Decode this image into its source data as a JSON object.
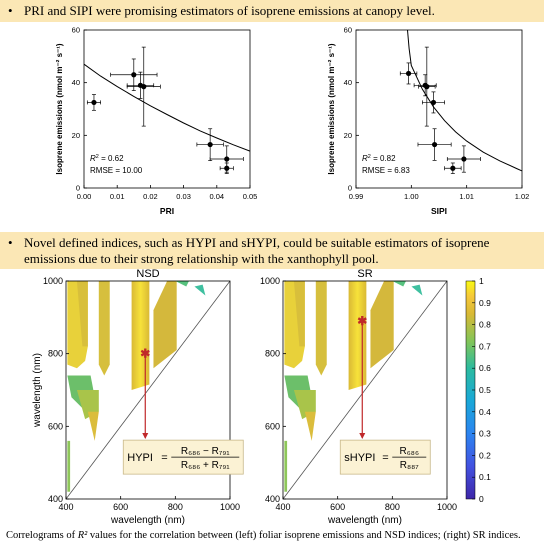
{
  "banner_top": {
    "bullet": "•",
    "text": "PRI and SIPI were promising estimators of isoprene emissions at canopy level."
  },
  "banner_mid": {
    "bullet": "•",
    "text": "Novel defined indices, such as HYPI and sHYPI, could be suitable estimators of isoprene emissions due to their strong relationship with the xanthophyll pool."
  },
  "caption": {
    "prefix": "Correlograms of ",
    "r2": "R²",
    "suffix": " values for the correlation between (left) foliar isoprene emissions and NSD indices; (right) SR indices."
  },
  "colors": {
    "banner": "#fbe7b5",
    "heat_high": "#f6e436",
    "heat_mid": "#cbb83c",
    "heat_low": "#3f2d8c",
    "formula_box": "#fbf2d4",
    "arrow": "#c0282a"
  },
  "chart_data": [
    {
      "type": "scatter",
      "xlabel": "PRI",
      "ylabel": "Isoprene emissions (nmol m⁻² s⁻¹)",
      "xlim": [
        0.0,
        0.05
      ],
      "ylim": [
        0,
        60
      ],
      "xticks": [
        "0.00",
        "0.01",
        "0.02",
        "0.03",
        "0.04",
        "0.05"
      ],
      "yticks": [
        "0",
        "20",
        "40",
        "60"
      ],
      "points": [
        {
          "x": 0.003,
          "y": 32.5,
          "xerr": 0.002,
          "yerr": 3
        },
        {
          "x": 0.015,
          "y": 43,
          "xerr": 0.007,
          "yerr": 6
        },
        {
          "x": 0.017,
          "y": 39,
          "xerr": 0.004,
          "yerr": 5
        },
        {
          "x": 0.018,
          "y": 38.5,
          "xerr": 0.005,
          "yerr": 15
        },
        {
          "x": 0.038,
          "y": 16.5,
          "xerr": 0.004,
          "yerr": 6
        },
        {
          "x": 0.043,
          "y": 11,
          "xerr": 0.005,
          "yerr": 5
        },
        {
          "x": 0.043,
          "y": 7.5,
          "xerr": 0.002,
          "yerr": 2
        }
      ],
      "fit": {
        "x": [
          0.0,
          0.005,
          0.01,
          0.015,
          0.02,
          0.025,
          0.03,
          0.035,
          0.04,
          0.045,
          0.05
        ],
        "y": [
          47,
          42.5,
          38.5,
          34.8,
          31.2,
          27.9,
          24.7,
          21.7,
          19,
          16.4,
          14
        ]
      },
      "annotation": {
        "r2_label": "R",
        "r2_sup": "2",
        "r2_value": " = 0.62",
        "rmse": "RMSE = 10.00"
      }
    },
    {
      "type": "scatter",
      "xlabel": "SIPI",
      "ylabel": "Isoprene emissions (nmol m⁻² s⁻¹)",
      "xlim": [
        0.99,
        1.02
      ],
      "ylim": [
        0,
        60
      ],
      "xticks": [
        "0.99",
        "1.00",
        "1.01",
        "1.02"
      ],
      "yticks": [
        "0",
        "20",
        "40",
        "60"
      ],
      "points": [
        {
          "x": 0.9995,
          "y": 43.5,
          "xerr": 0.0015,
          "yerr": 4
        },
        {
          "x": 1.0025,
          "y": 39,
          "xerr": 0.002,
          "yerr": 4
        },
        {
          "x": 1.0028,
          "y": 38.5,
          "xerr": 0.0015,
          "yerr": 15
        },
        {
          "x": 1.004,
          "y": 32.5,
          "xerr": 0.002,
          "yerr": 4
        },
        {
          "x": 1.0042,
          "y": 16.5,
          "xerr": 0.003,
          "yerr": 6
        },
        {
          "x": 1.0095,
          "y": 11,
          "xerr": 0.003,
          "yerr": 5
        },
        {
          "x": 1.0075,
          "y": 7.5,
          "xerr": 0.0015,
          "yerr": 2
        }
      ],
      "fit": {
        "x": [
          0.9993,
          0.9996,
          1.0,
          1.002,
          1.004,
          1.006,
          1.008,
          1.01,
          1.013,
          1.016,
          1.019,
          1.02
        ],
        "y": [
          60,
          53,
          46.5,
          37.5,
          30.8,
          25.6,
          21.3,
          17.8,
          13.6,
          10.3,
          7.4,
          6.5
        ]
      },
      "annotation": {
        "r2_label": "R",
        "r2_sup": "2",
        "r2_value": " = 0.82",
        "rmse": "RMSE = 6.83"
      }
    },
    {
      "type": "heatmap",
      "title": "NSD",
      "xlabel": "wavelength (nm)",
      "ylabel": "wavelength (nm)",
      "xlim": [
        400,
        1000
      ],
      "ylim": [
        400,
        1000
      ],
      "xticks": [
        "400",
        "600",
        "800",
        "1000"
      ],
      "yticks": [
        "400",
        "600",
        "800",
        "1000"
      ],
      "marker": {
        "x": 690,
        "y": 800
      },
      "formula": {
        "lhs": "HYPI",
        "num": "R₆₈₆ − R₇₉₁",
        "den": "R₆₈₆ + R₇₉₁"
      }
    },
    {
      "type": "heatmap",
      "title": "SR",
      "xlabel": "wavelength (nm)",
      "ylabel": "",
      "xlim": [
        400,
        1000
      ],
      "ylim": [
        400,
        1000
      ],
      "xticks": [
        "400",
        "600",
        "800",
        "1000"
      ],
      "yticks": [
        "400",
        "600",
        "800",
        "1000"
      ],
      "marker": {
        "x": 690,
        "y": 890
      },
      "formula": {
        "lhs": "sHYPI",
        "num": "R₆₈₆",
        "den": "R₈₈₇"
      },
      "colorbar": {
        "ticks": [
          "0",
          "0.1",
          "0.2",
          "0.3",
          "0.4",
          "0.5",
          "0.6",
          "0.7",
          "0.8",
          "0.9",
          "1"
        ],
        "range": [
          0,
          1
        ]
      }
    }
  ]
}
